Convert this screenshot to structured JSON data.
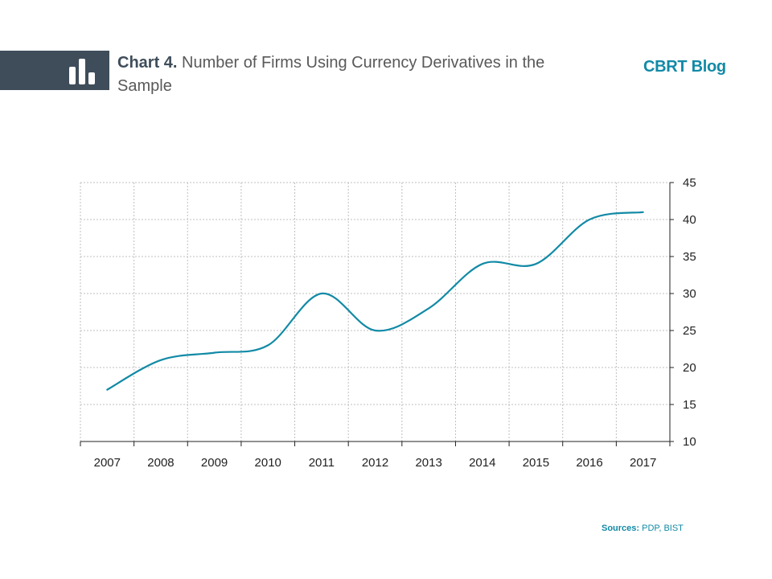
{
  "header": {
    "chart_label": "Chart 4.",
    "chart_title": "Number of Firms Using Currency Derivatives in the Sample",
    "brand": "CBRT Blog",
    "icon": "bar-chart-icon"
  },
  "footer": {
    "sources_label": "Sources:",
    "sources_text": "PDP, BIST"
  },
  "colors": {
    "header_band": "#3f4d5a",
    "accent": "#128aa6",
    "line": "#128aa6",
    "grid": "#bfbfbf"
  },
  "chart_data": {
    "type": "line",
    "title": "",
    "xlabel": "",
    "ylabel": "",
    "categories": [
      "2007",
      "2008",
      "2009",
      "2010",
      "2011",
      "2012",
      "2013",
      "2014",
      "2015",
      "2016",
      "2017"
    ],
    "series": [
      {
        "values": [
          17,
          21,
          22,
          23,
          30,
          25,
          28,
          34,
          34,
          40,
          41
        ]
      }
    ],
    "ylim": [
      10,
      45
    ],
    "yticks": [
      10,
      15,
      20,
      25,
      30,
      35,
      40,
      45
    ],
    "y_axis_position": "right",
    "grid": true,
    "legend": "none"
  }
}
